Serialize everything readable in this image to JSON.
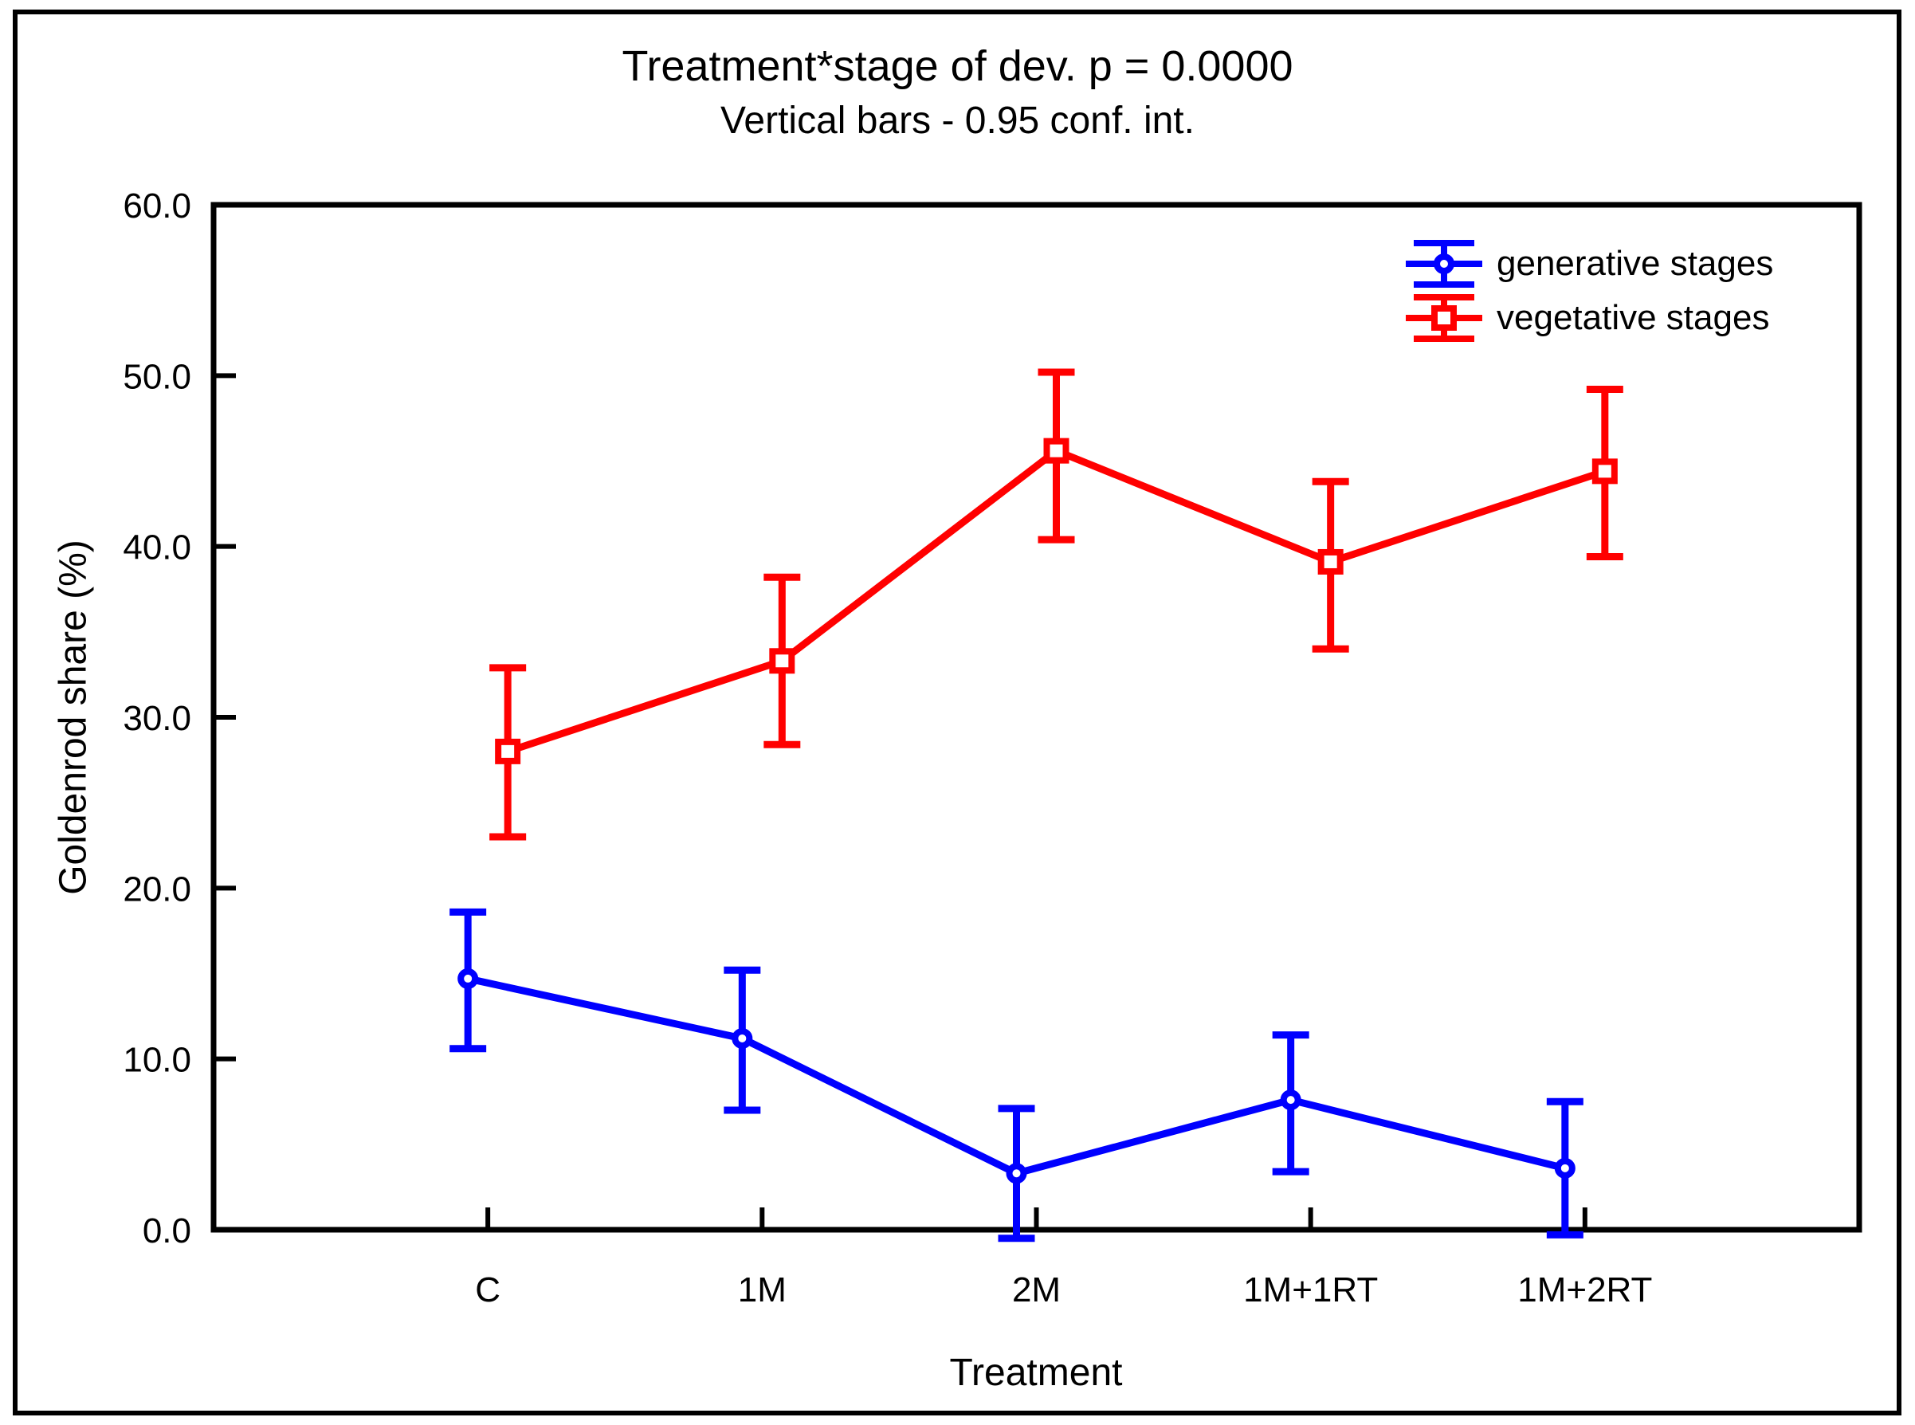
{
  "chart_data": {
    "type": "line",
    "title": "Treatment*stage of dev. p = 0.0000",
    "subtitle": "Vertical bars - 0.95 conf. int.",
    "xlabel": "Treatment",
    "ylabel": "Goldenrod share (%)",
    "categories": [
      "C",
      "1M",
      "2M",
      "1M+1RT",
      "1M+2RT"
    ],
    "ylim": [
      0,
      60
    ],
    "ytick_step": 10,
    "ytick_labels": [
      "0.0",
      "10.0",
      "20.0",
      "30.0",
      "40.0",
      "50.0",
      "60.0"
    ],
    "grid": false,
    "legend_position": "top-right-inside",
    "axis_color": "#000000",
    "error_bar_meaning": "0.95 confidence interval",
    "series": [
      {
        "name": "generative stages",
        "color": "#0000ff",
        "marker": "circle",
        "x_offset": -25,
        "values": [
          14.7,
          11.2,
          3.3,
          7.6,
          3.6
        ],
        "ci_low": [
          10.6,
          7.0,
          -0.5,
          3.4,
          -0.3
        ],
        "ci_high": [
          18.6,
          15.2,
          7.1,
          11.4,
          7.5
        ]
      },
      {
        "name": "vegetative stages",
        "color": "#ff0000",
        "marker": "square",
        "x_offset": 25,
        "values": [
          28.0,
          33.3,
          45.6,
          39.1,
          44.4
        ],
        "ci_low": [
          23.0,
          28.4,
          40.4,
          34.0,
          39.4
        ],
        "ci_high": [
          32.9,
          38.2,
          50.2,
          43.8,
          49.2
        ]
      }
    ]
  }
}
